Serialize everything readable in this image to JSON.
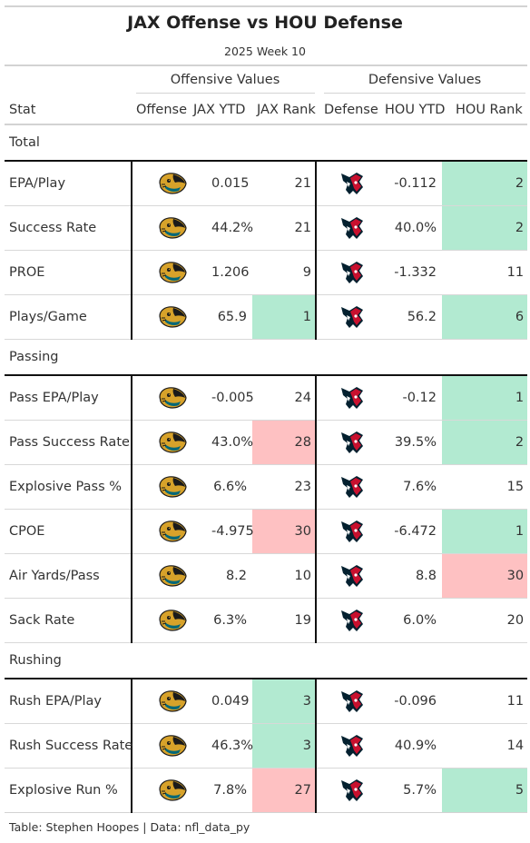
{
  "title": "JAX Offense vs HOU Defense",
  "subtitle": "2025 Week 10",
  "spanners": {
    "offense": "Offensive Values",
    "defense": "Defensive Values"
  },
  "columns": [
    "Stat",
    "Offense",
    "JAX YTD",
    "JAX Rank",
    "Defense",
    "HOU YTD",
    "HOU Rank"
  ],
  "logos": {
    "offense": "jaguars-logo-icon",
    "defense": "texans-logo-icon"
  },
  "colors": {
    "good_rank": "#b2ead1",
    "bad_rank": "#fec1c2",
    "texans_navy": "#03202f",
    "texans_red": "#c8102e",
    "jaguars_teal": "#006778",
    "jaguars_gold": "#d7a22a"
  },
  "chart_data": {
    "type": "table",
    "groups": [
      {
        "name": "Total",
        "rows": [
          {
            "stat": "EPA/Play",
            "jax_ytd": "0.015",
            "jax_rank": "21",
            "jax_rank_status": "none",
            "hou_ytd": "-0.112",
            "hou_rank": "2",
            "hou_rank_status": "good"
          },
          {
            "stat": "Success Rate",
            "jax_ytd": "44.2%",
            "jax_rank": "21",
            "jax_rank_status": "none",
            "hou_ytd": "40.0%",
            "hou_rank": "2",
            "hou_rank_status": "good"
          },
          {
            "stat": "PROE",
            "jax_ytd": "1.206",
            "jax_rank": "9",
            "jax_rank_status": "none",
            "hou_ytd": "-1.332",
            "hou_rank": "11",
            "hou_rank_status": "none"
          },
          {
            "stat": "Plays/Game",
            "jax_ytd": "65.9",
            "jax_rank": "1",
            "jax_rank_status": "good",
            "hou_ytd": "56.2",
            "hou_rank": "6",
            "hou_rank_status": "good"
          }
        ]
      },
      {
        "name": "Passing",
        "rows": [
          {
            "stat": "Pass EPA/Play",
            "jax_ytd": "-0.005",
            "jax_rank": "24",
            "jax_rank_status": "none",
            "hou_ytd": "-0.12",
            "hou_rank": "1",
            "hou_rank_status": "good"
          },
          {
            "stat": "Pass Success Rate",
            "jax_ytd": "43.0%",
            "jax_rank": "28",
            "jax_rank_status": "bad",
            "hou_ytd": "39.5%",
            "hou_rank": "2",
            "hou_rank_status": "good"
          },
          {
            "stat": "Explosive Pass %",
            "jax_ytd": "6.6%",
            "jax_rank": "23",
            "jax_rank_status": "none",
            "hou_ytd": "7.6%",
            "hou_rank": "15",
            "hou_rank_status": "none"
          },
          {
            "stat": "CPOE",
            "jax_ytd": "-4.975",
            "jax_rank": "30",
            "jax_rank_status": "bad",
            "hou_ytd": "-6.472",
            "hou_rank": "1",
            "hou_rank_status": "good"
          },
          {
            "stat": "Air Yards/Pass",
            "jax_ytd": "8.2",
            "jax_rank": "10",
            "jax_rank_status": "none",
            "hou_ytd": "8.8",
            "hou_rank": "30",
            "hou_rank_status": "bad"
          },
          {
            "stat": "Sack Rate",
            "jax_ytd": "6.3%",
            "jax_rank": "19",
            "jax_rank_status": "none",
            "hou_ytd": "6.0%",
            "hou_rank": "20",
            "hou_rank_status": "none"
          }
        ]
      },
      {
        "name": "Rushing",
        "rows": [
          {
            "stat": "Rush EPA/Play",
            "jax_ytd": "0.049",
            "jax_rank": "3",
            "jax_rank_status": "good",
            "hou_ytd": "-0.096",
            "hou_rank": "11",
            "hou_rank_status": "none"
          },
          {
            "stat": "Rush Success Rate",
            "jax_ytd": "46.3%",
            "jax_rank": "3",
            "jax_rank_status": "good",
            "hou_ytd": "40.9%",
            "hou_rank": "14",
            "hou_rank_status": "none"
          },
          {
            "stat": "Explosive Run %",
            "jax_ytd": "7.8%",
            "jax_rank": "27",
            "jax_rank_status": "bad",
            "hou_ytd": "5.7%",
            "hou_rank": "5",
            "hou_rank_status": "good"
          }
        ]
      }
    ]
  },
  "footer": "Table: Stephen Hoopes | Data: nfl_data_py"
}
